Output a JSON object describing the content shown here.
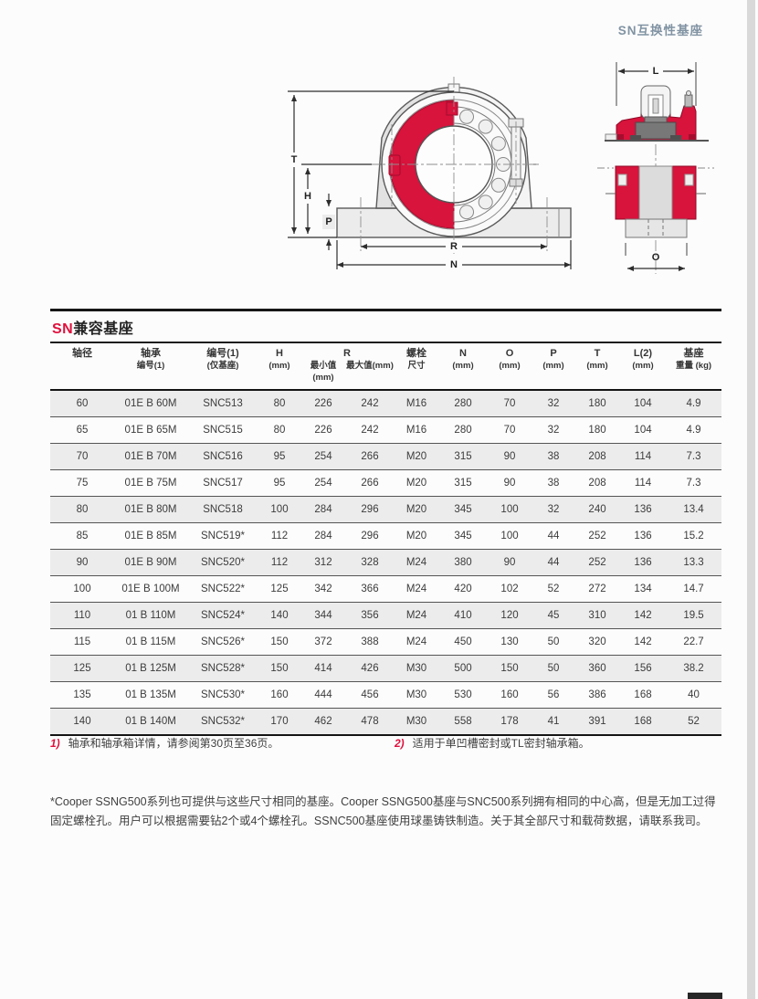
{
  "page": {
    "header_title": "SN互换性基座"
  },
  "colors": {
    "accent_red": "#e0103d",
    "drawing_red": "#d8133c",
    "header_blue_gray": "#8193a3",
    "stripe_gray": "#ececec"
  },
  "diagrams": {
    "front_view": {
      "labels": {
        "T": "T",
        "H": "H",
        "P": "P",
        "R": "R",
        "N": "N"
      }
    },
    "side_view": {
      "labels": {
        "L": "L",
        "O": "O"
      }
    }
  },
  "table": {
    "title": {
      "accent": "SN",
      "rest": "兼容基座"
    },
    "head_row1": [
      "轴径",
      "轴承",
      "编号(1)",
      "H",
      "R",
      "螺栓",
      "N",
      "O",
      "P",
      "T",
      "L(2)",
      "基座"
    ],
    "head_row2": [
      "编号(1)",
      "(仅基座)",
      "(mm)",
      "最小值(mm)",
      "最大值(mm)",
      "尺寸",
      "(mm)",
      "(mm)",
      "(mm)",
      "(mm)",
      "(mm)",
      "重量 (kg)"
    ],
    "rows": [
      [
        "60",
        "01E B 60M",
        "SNC513",
        "80",
        "226",
        "242",
        "M16",
        "280",
        "70",
        "32",
        "180",
        "104",
        "4.9"
      ],
      [
        "65",
        "01E B 65M",
        "SNC515",
        "80",
        "226",
        "242",
        "M16",
        "280",
        "70",
        "32",
        "180",
        "104",
        "4.9"
      ],
      [
        "70",
        "01E B 70M",
        "SNC516",
        "95",
        "254",
        "266",
        "M20",
        "315",
        "90",
        "38",
        "208",
        "114",
        "7.3"
      ],
      [
        "75",
        "01E B 75M",
        "SNC517",
        "95",
        "254",
        "266",
        "M20",
        "315",
        "90",
        "38",
        "208",
        "114",
        "7.3"
      ],
      [
        "80",
        "01E B 80M",
        "SNC518",
        "100",
        "284",
        "296",
        "M20",
        "345",
        "100",
        "32",
        "240",
        "136",
        "13.4"
      ],
      [
        "85",
        "01E B 85M",
        "SNC519*",
        "112",
        "284",
        "296",
        "M20",
        "345",
        "100",
        "44",
        "252",
        "136",
        "15.2"
      ],
      [
        "90",
        "01E B 90M",
        "SNC520*",
        "112",
        "312",
        "328",
        "M24",
        "380",
        "90",
        "44",
        "252",
        "136",
        "13.3"
      ],
      [
        "100",
        "01E B 100M",
        "SNC522*",
        "125",
        "342",
        "366",
        "M24",
        "420",
        "102",
        "52",
        "272",
        "134",
        "14.7"
      ],
      [
        "110",
        "01 B 110M",
        "SNC524*",
        "140",
        "344",
        "356",
        "M24",
        "410",
        "120",
        "45",
        "310",
        "142",
        "19.5"
      ],
      [
        "115",
        "01 B 115M",
        "SNC526*",
        "150",
        "372",
        "388",
        "M24",
        "450",
        "130",
        "50",
        "320",
        "142",
        "22.7"
      ],
      [
        "125",
        "01 B 125M",
        "SNC528*",
        "150",
        "414",
        "426",
        "M30",
        "500",
        "150",
        "50",
        "360",
        "156",
        "38.2"
      ],
      [
        "135",
        "01 B 135M",
        "SNC530*",
        "160",
        "444",
        "456",
        "M30",
        "530",
        "160",
        "56",
        "386",
        "168",
        "40"
      ],
      [
        "140",
        "01 B 140M",
        "SNC532*",
        "170",
        "462",
        "478",
        "M30",
        "558",
        "178",
        "41",
        "391",
        "168",
        "52"
      ]
    ]
  },
  "footnotes": [
    {
      "marker": "1)",
      "text": "轴承和轴承箱详情，请参阅第30页至36页。"
    },
    {
      "marker": "2)",
      "text": "适用于单凹槽密封或TL密封轴承箱。"
    }
  ],
  "note": "*Cooper SSNG500系列也可提供与这些尺寸相同的基座。Cooper SSNG500基座与SNC500系列拥有相同的中心高，但是无加工过得固定螺栓孔。用户可以根据需要钻2个或4个螺栓孔。SSNC500基座使用球墨铸铁制造。关于其全部尺寸和载荷数据，请联系我司。"
}
